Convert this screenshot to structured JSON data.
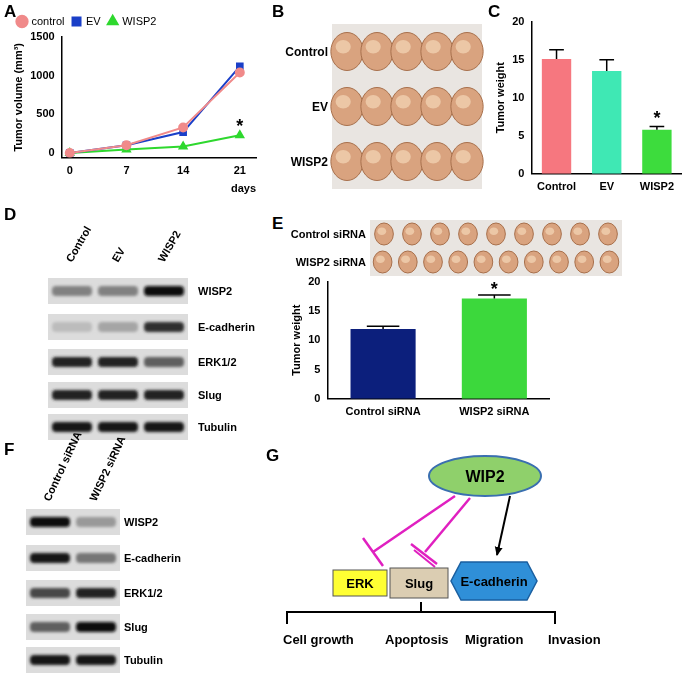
{
  "chart_data": [
    {
      "panel_label": "A",
      "type": "line",
      "y_label": "Tumor volume (mm³)",
      "x_label": "days",
      "x": [
        0,
        7,
        14,
        21
      ],
      "xlim": [
        -1,
        23
      ],
      "xticks": [
        0,
        7,
        14,
        21
      ],
      "ylim": [
        -60,
        1500
      ],
      "yticks": [
        0,
        500,
        1000,
        1500
      ],
      "grid": false,
      "legend": "upper left",
      "series": [
        {
          "name": "control",
          "color": "#f08a8a",
          "marker": "circle",
          "values": [
            0,
            100,
            330,
            1040
          ]
        },
        {
          "name": "EV",
          "color": "#1a3fc8",
          "marker": "square",
          "values": [
            0,
            100,
            270,
            1120
          ]
        },
        {
          "name": "WISP2",
          "color": "#2ed82e",
          "marker": "triangle",
          "values": [
            0,
            45,
            85,
            230
          ]
        }
      ],
      "annotations": [
        {
          "text": "*",
          "x": 21,
          "y": 330
        }
      ]
    },
    {
      "panel_label": "C",
      "type": "bar",
      "y_label": "Tumor weight",
      "categories": [
        "Control",
        "EV",
        "WISP2"
      ],
      "values": [
        15.1,
        13.5,
        5.8
      ],
      "errors": [
        1.2,
        1.5,
        0.4
      ],
      "colors": [
        "#f6777f",
        "#3fe8b4",
        "#3ddc3d"
      ],
      "ylim": [
        0,
        20
      ],
      "yticks": [
        0,
        5,
        10,
        15,
        20
      ],
      "grid": false,
      "annotations": [
        {
          "text": "*",
          "category": "WISP2",
          "y": 7.2
        }
      ]
    },
    {
      "panel_label": "E",
      "type": "bar",
      "y_label": "Tumor weight",
      "categories": [
        "Control siRNA",
        "WISP2 siRNA"
      ],
      "values": [
        11.9,
        17.1
      ],
      "errors": [
        0.5,
        0.6
      ],
      "colors": [
        "#0c1f7c",
        "#3cd83c"
      ],
      "ylim": [
        0,
        20
      ],
      "yticks": [
        0,
        5,
        10,
        15,
        20
      ],
      "grid": false,
      "annotations": [
        {
          "text": "*",
          "category": "WISP2 siRNA",
          "y": 18.6
        }
      ]
    }
  ],
  "photos": [
    {
      "panel_label": "B",
      "rows": [
        {
          "name": "Control",
          "tumors": 5
        },
        {
          "name": "EV",
          "tumors": 5
        },
        {
          "name": "WISP2",
          "tumors": 5
        }
      ]
    },
    {
      "panel_label": "E",
      "rows": [
        {
          "name": "Control siRNA",
          "tumors": 9
        },
        {
          "name": "WISP2 siRNA",
          "tumors": 10
        }
      ]
    }
  ],
  "blots": [
    {
      "panel_label": "D",
      "lanes": [
        "Control",
        "EV",
        "WISP2"
      ],
      "rows": [
        {
          "name": "WISP2",
          "intensity": [
            0.45,
            0.45,
            0.95
          ]
        },
        {
          "name": "E-cadherin",
          "intensity": [
            0.2,
            0.3,
            0.8
          ]
        },
        {
          "name": "ERK1/2",
          "intensity": [
            0.85,
            0.85,
            0.6
          ]
        },
        {
          "name": "Slug",
          "intensity": [
            0.85,
            0.85,
            0.85
          ]
        },
        {
          "name": "Tubulin",
          "intensity": [
            0.9,
            0.9,
            0.9
          ]
        }
      ]
    },
    {
      "panel_label": "F",
      "lanes": [
        "Control siRNA",
        "WISP2 siRNA"
      ],
      "rows": [
        {
          "name": "WISP2",
          "intensity": [
            0.95,
            0.35
          ]
        },
        {
          "name": "E-cadherin",
          "intensity": [
            0.9,
            0.5
          ]
        },
        {
          "name": "ERK1/2",
          "intensity": [
            0.7,
            0.85
          ]
        },
        {
          "name": "Slug",
          "intensity": [
            0.6,
            0.95
          ]
        },
        {
          "name": "Tubulin",
          "intensity": [
            0.9,
            0.9
          ]
        }
      ]
    }
  ],
  "diagram": {
    "panel_label": "G",
    "source": "WIP2",
    "targets": [
      "ERK",
      "Slug",
      "E-cadherin"
    ],
    "outcomes": [
      "Cell growth",
      "Apoptosis",
      "Migration",
      "Invasion"
    ]
  }
}
